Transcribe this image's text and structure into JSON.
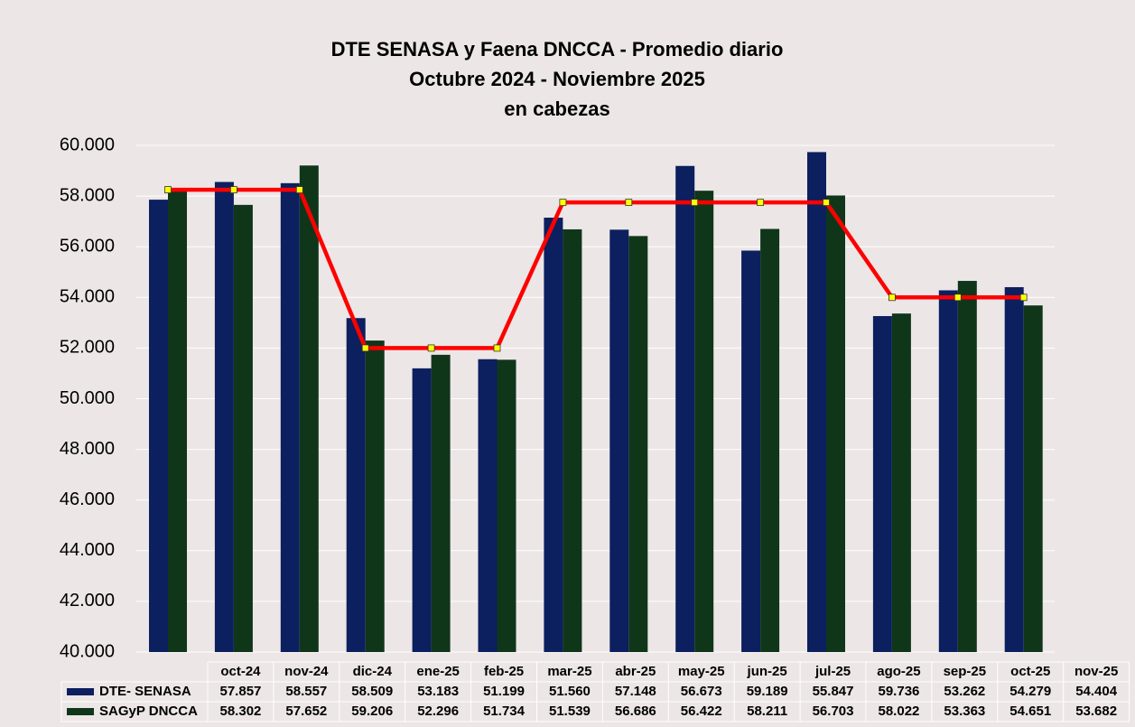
{
  "chart_data": {
    "type": "bar",
    "title": "DTE SENASA y Faena DNCCA - Promedio diario",
    "subtitle": [
      "Octubre 2024 - Noviembre 2025",
      "en cabezas"
    ],
    "categories": [
      "oct-24",
      "nov-24",
      "dic-24",
      "ene-25",
      "feb-25",
      "mar-25",
      "abr-25",
      "may-25",
      "jun-25",
      "jul-25",
      "ago-25",
      "sep-25",
      "oct-25",
      "nov-25"
    ],
    "series": [
      {
        "name": "DTE- SENASA",
        "color": "#0c1f5f",
        "values": [
          57857,
          58557,
          58509,
          53183,
          51199,
          51560,
          57148,
          56673,
          59189,
          55847,
          59736,
          53262,
          54279,
          54404
        ],
        "value_labels": [
          "57.857",
          "58.557",
          "58.509",
          "53.183",
          "51.199",
          "51.560",
          "57.148",
          "56.673",
          "59.189",
          "55.847",
          "59.736",
          "53.262",
          "54.279",
          "54.404"
        ]
      },
      {
        "name": "SAGyP DNCCA",
        "color": "#10361a",
        "values": [
          58302,
          57652,
          59206,
          52296,
          51734,
          51539,
          56686,
          56422,
          58211,
          56703,
          58022,
          53363,
          54651,
          53682
        ],
        "value_labels": [
          "58.302",
          "57.652",
          "59.206",
          "52.296",
          "51.734",
          "51.539",
          "56.686",
          "56.422",
          "58.211",
          "56.703",
          "58.022",
          "53.363",
          "54.651",
          "53.682"
        ]
      },
      {
        "type": "line",
        "color": "#ff0000",
        "marker_color": "#ffff00",
        "values": [
          58250,
          58250,
          58250,
          52000,
          52000,
          52000,
          57750,
          57750,
          57750,
          57750,
          57750,
          54000,
          54000,
          54000
        ]
      }
    ],
    "ylim": [
      40000,
      60000
    ],
    "yticks": [
      {
        "value": 40000,
        "label": "40.000"
      },
      {
        "value": 42000,
        "label": "42.000"
      },
      {
        "value": 44000,
        "label": "44.000"
      },
      {
        "value": 46000,
        "label": "46.000"
      },
      {
        "value": 48000,
        "label": "48.000"
      },
      {
        "value": 50000,
        "label": "50.000"
      },
      {
        "value": 52000,
        "label": "52.000"
      },
      {
        "value": 54000,
        "label": "54.000"
      },
      {
        "value": 56000,
        "label": "56.000"
      },
      {
        "value": 58000,
        "label": "58.000"
      },
      {
        "value": 60000,
        "label": "60.000"
      }
    ],
    "grid": true
  }
}
